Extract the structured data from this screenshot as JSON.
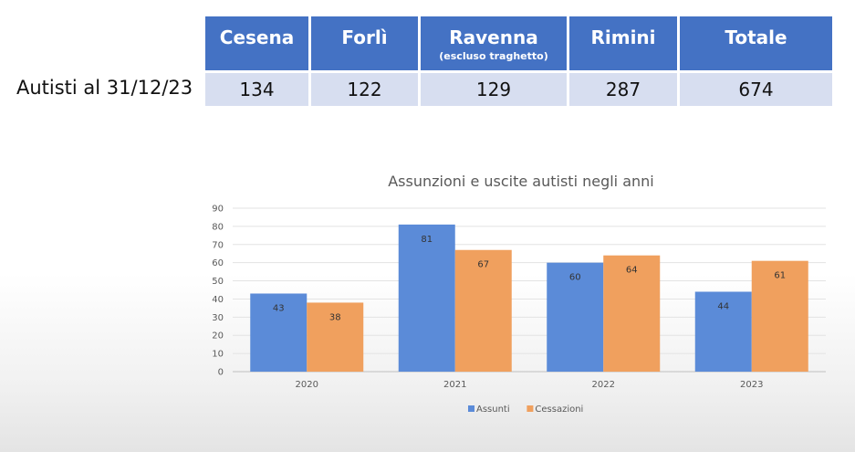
{
  "drivers_table": {
    "row_label": "Autisti al 31/12/23",
    "columns": [
      {
        "label": "Cesena",
        "sublabel": ""
      },
      {
        "label": "Forlì",
        "sublabel": ""
      },
      {
        "label": "Ravenna",
        "sublabel": "(escluso traghetto)"
      },
      {
        "label": "Rimini",
        "sublabel": ""
      },
      {
        "label": "Totale",
        "sublabel": ""
      }
    ],
    "values": [
      "134",
      "122",
      "129",
      "287",
      "674"
    ],
    "colors": {
      "header": "#4472c4",
      "cell": "#d7def0"
    }
  },
  "chart_data": {
    "type": "bar",
    "title": "Assunzioni e uscite autisti negli anni",
    "categories": [
      "2020",
      "2021",
      "2022",
      "2023"
    ],
    "series": [
      {
        "name": "Assunti",
        "values": [
          43,
          81,
          60,
          44
        ],
        "color": "#5b8bd8"
      },
      {
        "name": "Cessazioni",
        "values": [
          38,
          67,
          64,
          61
        ],
        "color": "#f0a05e"
      }
    ],
    "ylim": [
      0,
      90
    ],
    "yticks": [
      0,
      10,
      20,
      30,
      40,
      50,
      60,
      70,
      80,
      90
    ],
    "grid": true,
    "legend": "bottom",
    "data_labels": true
  }
}
